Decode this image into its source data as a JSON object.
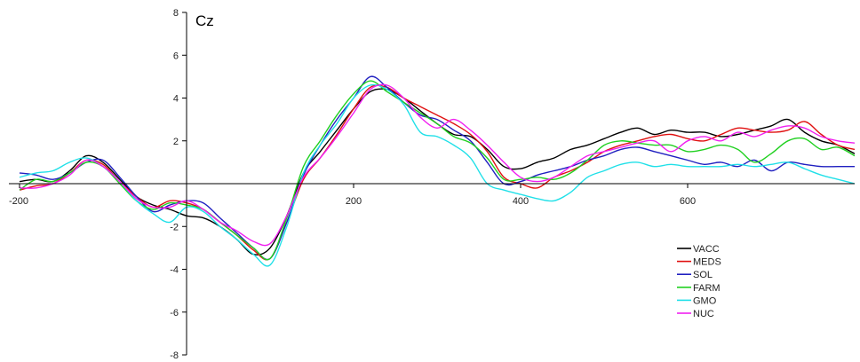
{
  "chart_data": {
    "type": "line",
    "title": "Cz",
    "xlabel": "",
    "ylabel": "",
    "xlim": [
      -200,
      800
    ],
    "ylim": [
      -8,
      8
    ],
    "x_ticks": [
      -200,
      200,
      400,
      600
    ],
    "y_ticks": [
      8,
      6,
      4,
      2,
      -2,
      -4,
      -6,
      -8
    ],
    "x_tick_labels": [
      "-200",
      "200",
      "400",
      "600"
    ],
    "y_tick_labels": [
      "8",
      "6",
      "4",
      "2",
      "-2",
      "-4",
      "-6",
      "-8"
    ],
    "grid": false,
    "legend_position": "bottom-right",
    "x": [
      -200,
      -180,
      -160,
      -140,
      -120,
      -100,
      -80,
      -60,
      -40,
      -20,
      0,
      20,
      40,
      60,
      80,
      100,
      120,
      140,
      160,
      180,
      200,
      220,
      240,
      260,
      280,
      300,
      320,
      340,
      360,
      380,
      400,
      420,
      440,
      460,
      480,
      500,
      520,
      540,
      560,
      580,
      600,
      620,
      640,
      660,
      680,
      700,
      720,
      740,
      760,
      780,
      800
    ],
    "series": [
      {
        "name": "VACC",
        "color": "#000000",
        "values": [
          0.1,
          0.2,
          0.1,
          0.6,
          1.3,
          1.0,
          0.2,
          -0.6,
          -1.0,
          -1.2,
          -1.5,
          -1.6,
          -2.0,
          -2.6,
          -3.3,
          -3.0,
          -1.5,
          0.5,
          1.5,
          2.5,
          3.5,
          4.3,
          4.4,
          4.0,
          3.4,
          2.8,
          2.3,
          2.2,
          1.6,
          0.8,
          0.7,
          1.0,
          1.2,
          1.6,
          1.8,
          2.1,
          2.4,
          2.6,
          2.3,
          2.5,
          2.4,
          2.4,
          2.2,
          2.3,
          2.5,
          2.7,
          3.0,
          2.4,
          2.0,
          1.8,
          1.4
        ]
      },
      {
        "name": "MEDS",
        "color": "#e01010",
        "values": [
          -0.3,
          -0.1,
          0.0,
          0.5,
          1.1,
          0.9,
          0.1,
          -0.6,
          -1.1,
          -0.8,
          -0.9,
          -1.2,
          -1.8,
          -2.4,
          -3.1,
          -3.5,
          -1.8,
          0.2,
          1.2,
          2.3,
          3.5,
          4.5,
          4.5,
          4.0,
          3.6,
          3.2,
          2.8,
          2.3,
          1.5,
          0.3,
          0.0,
          -0.2,
          0.3,
          0.6,
          1.0,
          1.5,
          1.8,
          2.0,
          2.2,
          2.3,
          2.1,
          2.0,
          2.3,
          2.6,
          2.5,
          2.4,
          2.5,
          2.9,
          2.3,
          1.8,
          1.6
        ]
      },
      {
        "name": "SOL",
        "color": "#2020c0",
        "values": [
          0.5,
          0.4,
          0.2,
          0.5,
          1.0,
          1.1,
          0.3,
          -0.6,
          -1.3,
          -1.0,
          -0.8,
          -0.9,
          -1.6,
          -2.3,
          -3.0,
          -3.5,
          -1.8,
          0.4,
          1.8,
          3.0,
          4.0,
          5.0,
          4.5,
          3.8,
          3.2,
          3.0,
          2.5,
          2.0,
          1.0,
          0.0,
          0.1,
          0.4,
          0.6,
          0.8,
          1.1,
          1.3,
          1.6,
          1.7,
          1.5,
          1.3,
          1.1,
          0.9,
          1.0,
          0.8,
          1.1,
          0.6,
          1.0,
          0.9,
          0.8,
          0.8,
          0.8
        ]
      },
      {
        "name": "FARM",
        "color": "#20d020",
        "values": [
          -0.3,
          0.2,
          0.1,
          0.5,
          1.0,
          0.8,
          0.0,
          -0.8,
          -1.2,
          -0.9,
          -1.0,
          -1.2,
          -1.8,
          -2.4,
          -3.0,
          -3.5,
          -1.6,
          0.8,
          2.0,
          3.2,
          4.2,
          4.8,
          4.3,
          3.8,
          3.3,
          2.8,
          2.2,
          1.9,
          1.2,
          0.2,
          0.2,
          0.3,
          0.2,
          0.5,
          1.1,
          1.8,
          2.0,
          1.9,
          1.8,
          1.8,
          1.5,
          1.6,
          1.8,
          1.6,
          1.0,
          1.4,
          2.0,
          2.1,
          1.6,
          1.7,
          1.3
        ]
      },
      {
        "name": "GMO",
        "color": "#20e0e8",
        "values": [
          0.3,
          0.5,
          0.6,
          1.0,
          1.2,
          0.8,
          0.1,
          -0.8,
          -1.4,
          -1.8,
          -1.1,
          -1.3,
          -2.0,
          -2.6,
          -3.3,
          -3.8,
          -2.0,
          0.5,
          1.8,
          2.8,
          4.0,
          4.6,
          4.4,
          3.7,
          2.4,
          2.2,
          1.8,
          1.2,
          0.0,
          -0.3,
          -0.5,
          -0.7,
          -0.8,
          -0.4,
          0.3,
          0.6,
          0.9,
          1.0,
          0.8,
          0.9,
          0.8,
          0.8,
          0.8,
          0.9,
          0.8,
          0.9,
          1.0,
          0.7,
          0.4,
          0.2,
          0.0
        ]
      },
      {
        "name": "NUC",
        "color": "#f020f0",
        "values": [
          -0.2,
          -0.2,
          0.0,
          0.4,
          1.1,
          0.8,
          0.1,
          -0.7,
          -1.1,
          -1.1,
          -0.8,
          -1.2,
          -1.8,
          -2.2,
          -2.7,
          -2.8,
          -1.5,
          0.3,
          1.2,
          2.2,
          3.3,
          4.4,
          4.6,
          4.0,
          3.1,
          2.6,
          3.0,
          2.5,
          1.8,
          1.0,
          0.3,
          0.1,
          0.3,
          0.8,
          1.3,
          1.5,
          1.7,
          1.9,
          2.0,
          1.5,
          2.0,
          2.2,
          2.0,
          2.4,
          2.2,
          2.5,
          2.7,
          2.6,
          2.2,
          2.0,
          1.9
        ]
      }
    ]
  }
}
